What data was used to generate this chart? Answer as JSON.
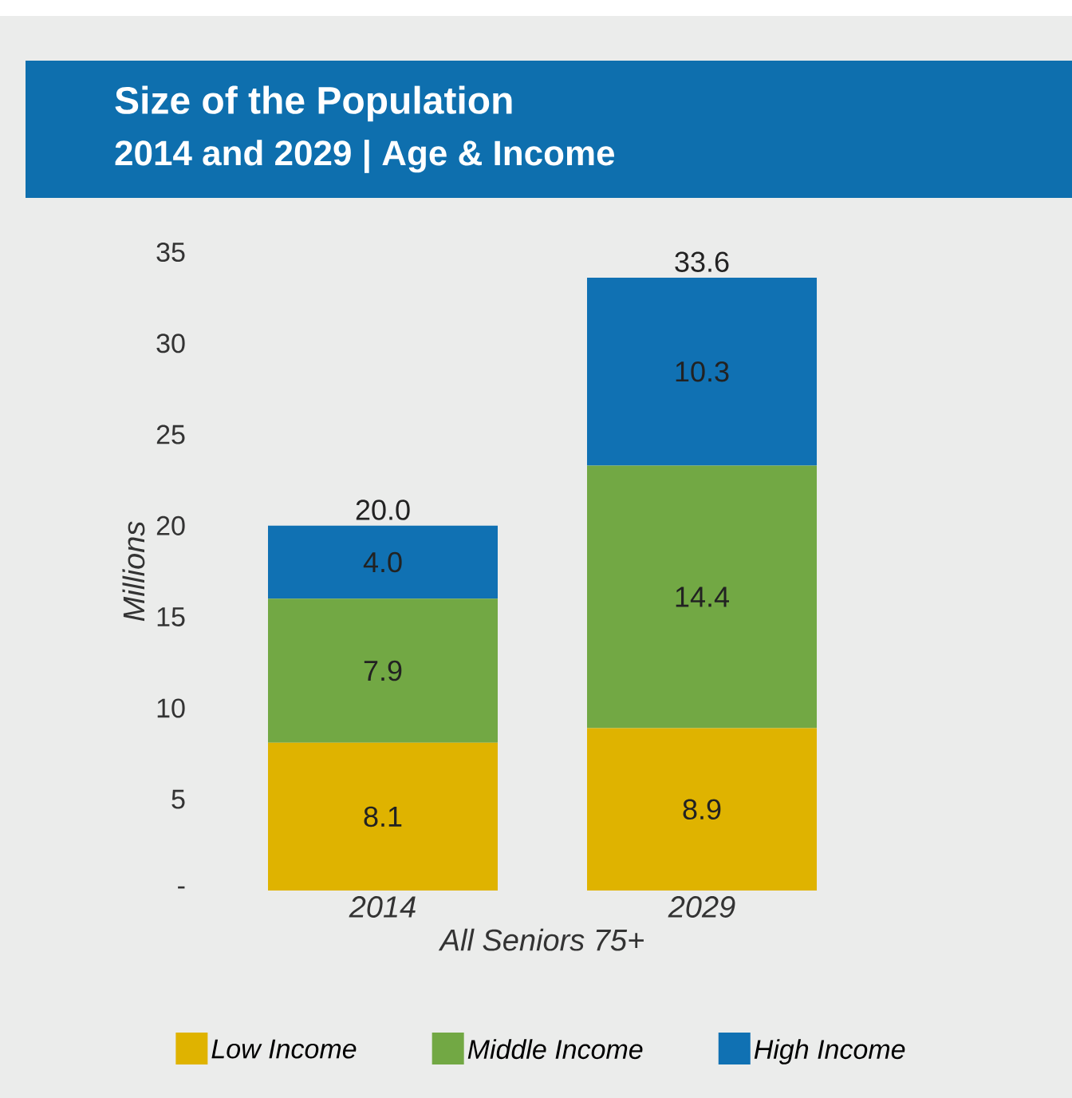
{
  "chart_data": {
    "type": "bar",
    "stacked": true,
    "title": "Size of the Population",
    "subtitle": "2014 and 2029  |  Age & Income",
    "categories": [
      "2014",
      "2029"
    ],
    "xlabel": "All Seniors 75+",
    "ylabel": "Millions",
    "series": [
      {
        "name": "Low Income",
        "color": "#dfb300",
        "values": [
          8.1,
          8.9
        ],
        "value_labels": [
          "8.1",
          "8.9"
        ]
      },
      {
        "name": "Middle Income",
        "color": "#72a844",
        "values": [
          7.9,
          14.4
        ],
        "value_labels": [
          "7.9",
          "14.4"
        ]
      },
      {
        "name": "High Income",
        "color": "#1071b3",
        "values": [
          4.0,
          10.3
        ],
        "value_labels": [
          "4.0",
          "10.3"
        ]
      }
    ],
    "totals": [
      "20.0",
      "33.6"
    ],
    "ylim": [
      0,
      35
    ],
    "yticks": [
      {
        "value": 0,
        "label": "-"
      },
      5,
      10,
      15,
      20,
      25,
      30,
      35
    ],
    "legend": "bottom"
  }
}
